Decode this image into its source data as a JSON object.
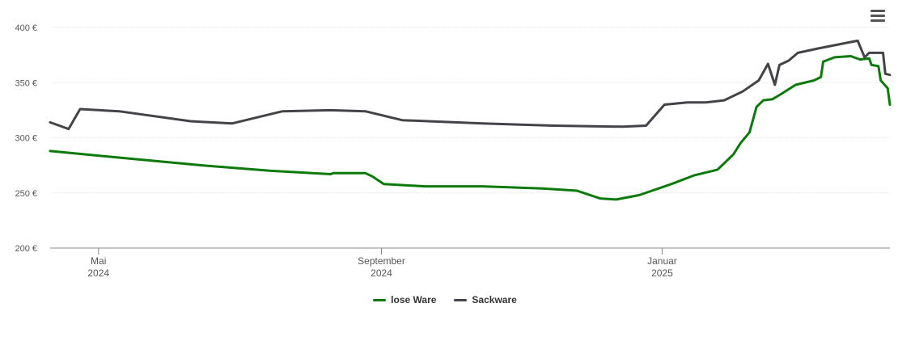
{
  "menu": {
    "icon": "hamburger-menu-icon"
  },
  "chart_data": {
    "type": "line",
    "ylim": [
      200,
      400
    ],
    "y_ticks": [
      {
        "value": 200,
        "label": "200 €"
      },
      {
        "value": 250,
        "label": "250 €"
      },
      {
        "value": 300,
        "label": "300 €"
      },
      {
        "value": 350,
        "label": "350 €"
      },
      {
        "value": 400,
        "label": "400 €"
      }
    ],
    "x_range": [
      "2024-04-10",
      "2025-04-10"
    ],
    "x_ticks": [
      {
        "date": "2024-05-01",
        "month": "Mai",
        "year": "2024"
      },
      {
        "date": "2024-09-01",
        "month": "September",
        "year": "2024"
      },
      {
        "date": "2025-01-01",
        "month": "Januar",
        "year": "2025"
      }
    ],
    "grid": true,
    "legend_position": "bottom-center",
    "series": [
      {
        "name": "lose Ware",
        "color": "#0b7a0b",
        "points": [
          [
            "2024-04-10",
            288
          ],
          [
            "2024-05-15",
            281
          ],
          [
            "2024-06-15",
            275
          ],
          [
            "2024-07-15",
            270
          ],
          [
            "2024-08-10",
            267
          ],
          [
            "2024-08-11",
            268
          ],
          [
            "2024-08-25",
            268
          ],
          [
            "2024-08-28",
            265
          ],
          [
            "2024-09-02",
            258
          ],
          [
            "2024-09-20",
            256
          ],
          [
            "2024-10-15",
            256
          ],
          [
            "2024-11-10",
            254
          ],
          [
            "2024-11-25",
            252
          ],
          [
            "2024-12-05",
            245
          ],
          [
            "2024-12-12",
            244
          ],
          [
            "2024-12-22",
            248
          ],
          [
            "2025-01-05",
            258
          ],
          [
            "2025-01-15",
            266
          ],
          [
            "2025-01-25",
            271
          ],
          [
            "2025-01-29",
            279
          ],
          [
            "2025-02-01",
            285
          ],
          [
            "2025-02-04",
            295
          ],
          [
            "2025-02-08",
            305
          ],
          [
            "2025-02-11",
            328
          ],
          [
            "2025-02-14",
            334
          ],
          [
            "2025-02-18",
            335
          ],
          [
            "2025-02-22",
            340
          ],
          [
            "2025-02-28",
            348
          ],
          [
            "2025-03-08",
            352
          ],
          [
            "2025-03-11",
            355
          ],
          [
            "2025-03-12",
            369
          ],
          [
            "2025-03-17",
            373
          ],
          [
            "2025-03-24",
            374
          ],
          [
            "2025-03-28",
            371
          ],
          [
            "2025-04-01",
            372
          ],
          [
            "2025-04-02",
            366
          ],
          [
            "2025-04-05",
            365
          ],
          [
            "2025-04-06",
            352
          ],
          [
            "2025-04-09",
            345
          ],
          [
            "2025-04-10",
            330
          ]
        ]
      },
      {
        "name": "Sackware",
        "color": "#434348",
        "points": [
          [
            "2024-04-10",
            314
          ],
          [
            "2024-04-18",
            308
          ],
          [
            "2024-04-23",
            326
          ],
          [
            "2024-05-10",
            324
          ],
          [
            "2024-06-10",
            315
          ],
          [
            "2024-06-28",
            313
          ],
          [
            "2024-07-20",
            324
          ],
          [
            "2024-08-10",
            325
          ],
          [
            "2024-08-25",
            324
          ],
          [
            "2024-09-10",
            316
          ],
          [
            "2024-10-15",
            313
          ],
          [
            "2024-11-15",
            311
          ],
          [
            "2024-12-15",
            310
          ],
          [
            "2024-12-25",
            311
          ],
          [
            "2025-01-02",
            330
          ],
          [
            "2025-01-12",
            332
          ],
          [
            "2025-01-20",
            332
          ],
          [
            "2025-01-28",
            334
          ],
          [
            "2025-02-05",
            342
          ],
          [
            "2025-02-12",
            352
          ],
          [
            "2025-02-16",
            367
          ],
          [
            "2025-02-19",
            348
          ],
          [
            "2025-02-21",
            366
          ],
          [
            "2025-02-25",
            370
          ],
          [
            "2025-03-01",
            377
          ],
          [
            "2025-03-10",
            381
          ],
          [
            "2025-03-22",
            386
          ],
          [
            "2025-03-27",
            388
          ],
          [
            "2025-03-30",
            373
          ],
          [
            "2025-04-01",
            377
          ],
          [
            "2025-04-05",
            377
          ],
          [
            "2025-04-07",
            377
          ],
          [
            "2025-04-08",
            358
          ],
          [
            "2025-04-10",
            357
          ]
        ]
      }
    ]
  }
}
